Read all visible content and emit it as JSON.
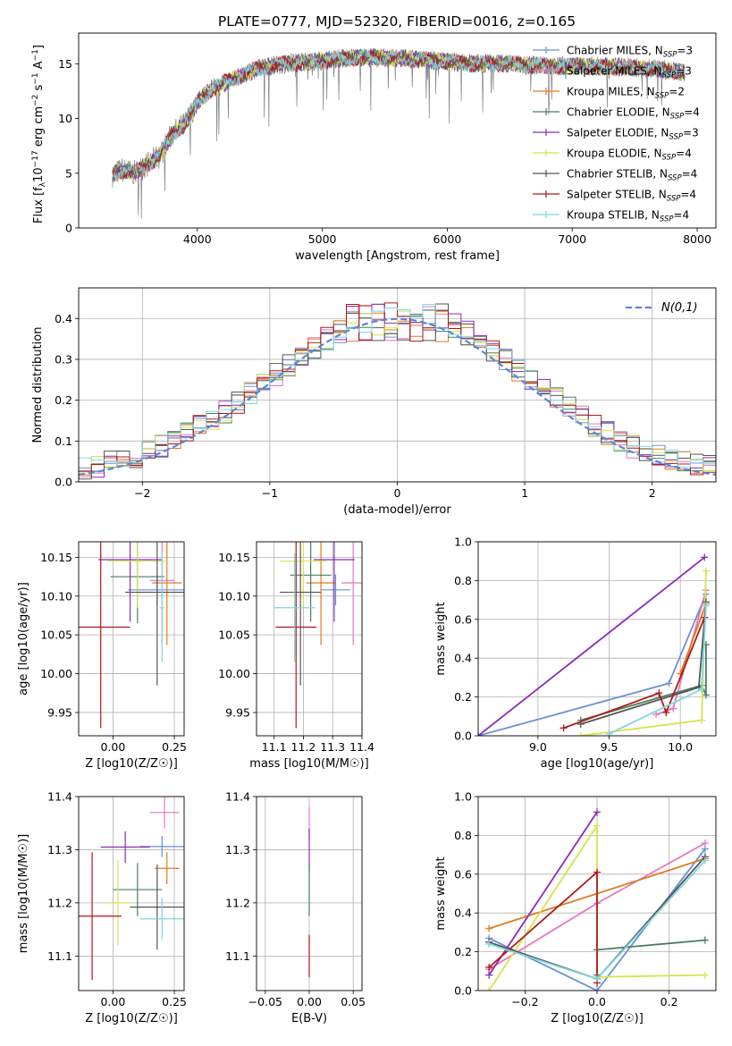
{
  "figure": {
    "title": "PLATE=0777, MJD=52320, FIBERID=0016, z=0.165"
  },
  "models": [
    {
      "name": "Chabrier MILES",
      "nssp": 3,
      "color": "#6b8fd6"
    },
    {
      "name": "Salpeter MILES",
      "nssp": 3,
      "color": "#e377c2"
    },
    {
      "name": "Kroupa MILES",
      "nssp": 2,
      "color": "#e07b20"
    },
    {
      "name": "Chabrier ELODIE",
      "nssp": 4,
      "color": "#4a7d5f"
    },
    {
      "name": "Salpeter ELODIE",
      "nssp": 3,
      "color": "#8a2cb8"
    },
    {
      "name": "Kroupa ELODIE",
      "nssp": 4,
      "color": "#d7e34a"
    },
    {
      "name": "Chabrier STELIB",
      "nssp": 4,
      "color": "#555555"
    },
    {
      "name": "Salpeter STELIB",
      "nssp": 4,
      "color": "#b01818"
    },
    {
      "name": "Kroupa STELIB",
      "nssp": 4,
      "color": "#7fd6e0"
    }
  ],
  "chart_data": [
    {
      "id": "spectrum",
      "type": "line",
      "xlabel": "wavelength [Angstrom, rest frame]",
      "ylabel": "Flux [f_λ 10^-17 erg cm^-2 s^-1 A^-1]",
      "xlim": [
        3050,
        8150
      ],
      "ylim": [
        0,
        17.8
      ],
      "xticks": [
        4000,
        5000,
        6000,
        7000,
        8000
      ],
      "yticks": [
        0,
        5,
        10,
        15
      ],
      "grid": false,
      "legend": "upper right",
      "continuum": {
        "x": [
          3320,
          3400,
          3500,
          3600,
          3700,
          3800,
          3900,
          4000,
          4100,
          4300,
          4500,
          4700,
          5000,
          5300,
          5600,
          5900,
          6200,
          6500,
          6800,
          7100,
          7400,
          7700,
          7900
        ],
        "y": [
          4.9,
          5.3,
          5.0,
          5.8,
          6.6,
          8.6,
          9.5,
          11.5,
          12.6,
          13.7,
          14.6,
          15.0,
          15.3,
          15.6,
          15.5,
          15.3,
          15.0,
          15.0,
          14.8,
          14.8,
          14.7,
          14.5,
          14.2
        ]
      },
      "data_color": "#808080"
    },
    {
      "id": "residuals",
      "type": "line",
      "xlabel": "(data-model)/error",
      "ylabel": "Normed distribution",
      "xlim": [
        -2.5,
        2.5
      ],
      "ylim": [
        0,
        0.475
      ],
      "xticks": [
        -2,
        -1,
        0,
        1,
        2
      ],
      "yticks": [
        0.0,
        0.1,
        0.2,
        0.3,
        0.4
      ],
      "grid": true,
      "legend": "upper right",
      "reference": {
        "label": "N(0,1)",
        "color": "#5b86d8"
      }
    },
    {
      "id": "age-vs-z",
      "type": "scatter",
      "xlabel": "Z [log10(Z/Z☉)]",
      "ylabel": "age [log10(age/yr)]",
      "xlim": [
        -0.14,
        0.29
      ],
      "ylim": [
        9.92,
        10.17
      ],
      "xticks": [
        0.0,
        0.25
      ],
      "yticks": [
        9.95,
        10.0,
        10.05,
        10.1,
        10.15
      ],
      "grid": true,
      "points": [
        {
          "model": 0,
          "x": 0.18,
          "xerr": 0.12,
          "y": 10.108,
          "yerr": 0.02
        },
        {
          "model": 1,
          "x": 0.2,
          "xerr": 0.05,
          "y": 10.12,
          "yerr": 0.08
        },
        {
          "model": 2,
          "x": 0.22,
          "xerr": 0.06,
          "y": 10.117,
          "yerr": 0.08
        },
        {
          "model": 3,
          "x": 0.1,
          "xerr": 0.11,
          "y": 10.125,
          "yerr": 0.06
        },
        {
          "model": 4,
          "x": 0.07,
          "xerr": 0.13,
          "y": 10.147,
          "yerr": 0.08
        },
        {
          "model": 5,
          "x": 0.1,
          "xerr": 0.12,
          "y": 10.145,
          "yerr": 0.06
        },
        {
          "model": 6,
          "x": 0.18,
          "xerr": 0.13,
          "y": 10.105,
          "yerr": 0.12
        },
        {
          "model": 7,
          "x": -0.05,
          "xerr": 0.12,
          "y": 10.06,
          "yerr": 0.13
        },
        {
          "model": 8,
          "x": 0.2,
          "xerr": 0.01,
          "y": 10.085,
          "yerr": 0.07
        }
      ]
    },
    {
      "id": "age-vs-mass",
      "type": "scatter",
      "xlabel": "mass [log10(M/M☉)]",
      "ylabel": "",
      "xlim": [
        11.04,
        11.4
      ],
      "ylim": [
        9.92,
        10.17
      ],
      "xticks": [
        11.1,
        11.2,
        11.3,
        11.4
      ],
      "xticklabels": [
        "11.1",
        "11.2",
        "11.3",
        "11.4"
      ],
      "yticks": [
        9.95,
        10.0,
        10.05,
        10.1,
        10.15
      ],
      "grid": true,
      "points": [
        {
          "model": 0,
          "x": 11.31,
          "xerr": 0.05,
          "y": 10.108,
          "yerr": 0.02
        },
        {
          "model": 1,
          "x": 11.37,
          "xerr": 0.04,
          "y": 10.117,
          "yerr": 0.08
        },
        {
          "model": 2,
          "x": 11.26,
          "xerr": 0.05,
          "y": 10.117,
          "yerr": 0.08
        },
        {
          "model": 3,
          "x": 11.225,
          "xerr": 0.07,
          "y": 10.127,
          "yerr": 0.06
        },
        {
          "model": 4,
          "x": 11.305,
          "xerr": 0.07,
          "y": 10.147,
          "yerr": 0.08
        },
        {
          "model": 5,
          "x": 11.2,
          "xerr": 0.08,
          "y": 10.145,
          "yerr": 0.06
        },
        {
          "model": 6,
          "x": 11.19,
          "xerr": 0.07,
          "y": 10.105,
          "yerr": 0.12
        },
        {
          "model": 7,
          "x": 11.175,
          "xerr": 0.07,
          "y": 10.06,
          "yerr": 0.13
        },
        {
          "model": 8,
          "x": 11.17,
          "xerr": 0.07,
          "y": 10.085,
          "yerr": 0.07
        }
      ]
    },
    {
      "id": "weight-vs-age",
      "type": "line",
      "xlabel": "age [log10(age/yr)]",
      "ylabel": "mass weight",
      "xlim": [
        8.58,
        10.25
      ],
      "ylim": [
        0,
        1.0
      ],
      "xticks": [
        9.0,
        9.5,
        10.0
      ],
      "yticks": [
        0.0,
        0.2,
        0.4,
        0.6,
        0.8,
        1.0
      ],
      "grid": true,
      "series": [
        {
          "model": 0,
          "x": [
            8.58,
            9.92,
            10.18
          ],
          "y": [
            0.0,
            0.27,
            0.73
          ]
        },
        {
          "model": 1,
          "x": [
            9.83,
            9.95,
            10.18
          ],
          "y": [
            0.11,
            0.14,
            0.75
          ]
        },
        {
          "model": 2,
          "x": [
            10.0,
            10.18
          ],
          "y": [
            0.32,
            0.68
          ]
        },
        {
          "model": 3,
          "x": [
            9.3,
            10.15,
            10.18,
            10.18
          ],
          "y": [
            0.08,
            0.26,
            0.21,
            0.47
          ]
        },
        {
          "model": 4,
          "x": [
            8.58,
            10.17
          ],
          "y": [
            0.0,
            0.92
          ]
        },
        {
          "model": 5,
          "x": [
            9.3,
            10.15,
            10.18
          ],
          "y": [
            0.0,
            0.08,
            0.85
          ]
        },
        {
          "model": 6,
          "x": [
            9.3,
            10.13,
            10.18
          ],
          "y": [
            0.06,
            0.25,
            0.69
          ]
        },
        {
          "model": 7,
          "x": [
            9.18,
            9.85,
            9.9,
            10.17
          ],
          "y": [
            0.04,
            0.22,
            0.12,
            0.61
          ]
        },
        {
          "model": 8,
          "x": [
            9.5,
            10.15,
            10.18
          ],
          "y": [
            0.01,
            0.24,
            0.67
          ]
        }
      ]
    },
    {
      "id": "mass-vs-z",
      "type": "scatter",
      "xlabel": "Z [log10(Z/Z☉)]",
      "ylabel": "mass [log10(M/M☉)]",
      "xlim": [
        -0.14,
        0.29
      ],
      "ylim": [
        11.035,
        11.4
      ],
      "xticks": [
        0.0,
        0.25
      ],
      "yticks": [
        11.1,
        11.2,
        11.3,
        11.4
      ],
      "grid": true,
      "points": [
        {
          "model": 0,
          "x": 0.2,
          "xerr": 0.09,
          "y": 11.306,
          "yerr": 0.02
        },
        {
          "model": 1,
          "x": 0.21,
          "xerr": 0.06,
          "y": 11.37,
          "yerr": 0.03
        },
        {
          "model": 2,
          "x": 0.22,
          "xerr": 0.05,
          "y": 11.265,
          "yerr": 0.03
        },
        {
          "model": 3,
          "x": 0.1,
          "xerr": 0.1,
          "y": 11.225,
          "yerr": 0.05
        },
        {
          "model": 4,
          "x": 0.05,
          "xerr": 0.1,
          "y": 11.305,
          "yerr": 0.03
        },
        {
          "model": 5,
          "x": 0.02,
          "xerr": 0.05,
          "y": 11.2,
          "yerr": 0.08
        },
        {
          "model": 6,
          "x": 0.18,
          "xerr": 0.11,
          "y": 11.192,
          "yerr": 0.08
        },
        {
          "model": 7,
          "x": -0.085,
          "xerr": 0.12,
          "y": 11.175,
          "yerr": 0.12
        },
        {
          "model": 8,
          "x": 0.2,
          "xerr": 0.09,
          "y": 11.17,
          "yerr": 0.04
        }
      ]
    },
    {
      "id": "mass-vs-ebv",
      "type": "scatter",
      "xlabel": "E(B-V)",
      "ylabel": "",
      "xlim": [
        -0.06,
        0.06
      ],
      "ylim": [
        11.035,
        11.4
      ],
      "xticks": [
        -0.05,
        0.0,
        0.05
      ],
      "yticks": [
        11.1,
        11.2,
        11.3,
        11.4
      ],
      "grid": true,
      "points": [
        {
          "model": 1,
          "x": 0.0,
          "xerr": 0,
          "y": 11.35,
          "yerr": 0.03
        },
        {
          "model": 4,
          "x": 0.0,
          "xerr": 0,
          "y": 11.3,
          "yerr": 0.04
        },
        {
          "model": 3,
          "x": 0.0,
          "xerr": 0,
          "y": 11.225,
          "yerr": 0.05
        },
        {
          "model": 7,
          "x": 0.0,
          "xerr": 0,
          "y": 11.1,
          "yerr": 0.04
        }
      ]
    },
    {
      "id": "weight-vs-z",
      "type": "line",
      "xlabel": "Z [log10(Z/Z☉)]",
      "ylabel": "mass weight",
      "xlim": [
        -0.33,
        0.33
      ],
      "ylim": [
        0,
        1.0
      ],
      "xticks": [
        -0.2,
        0.0,
        0.2
      ],
      "yticks": [
        0.0,
        0.2,
        0.4,
        0.6,
        0.8,
        1.0
      ],
      "grid": true,
      "series": [
        {
          "model": 0,
          "x": [
            -0.3,
            0.0,
            0.3
          ],
          "y": [
            0.27,
            0.0,
            0.73
          ]
        },
        {
          "model": 1,
          "x": [
            -0.3,
            0.0,
            0.3
          ],
          "y": [
            0.11,
            0.45,
            0.76
          ]
        },
        {
          "model": 2,
          "x": [
            -0.3,
            0.3
          ],
          "y": [
            0.32,
            0.68
          ]
        },
        {
          "model": 3,
          "x": [
            0.0,
            0.0,
            0.3
          ],
          "y": [
            0.08,
            0.21,
            0.26
          ]
        },
        {
          "model": 4,
          "x": [
            -0.3,
            0.0
          ],
          "y": [
            0.08,
            0.92
          ]
        },
        {
          "model": 5,
          "x": [
            -0.3,
            0.0,
            0.0,
            0.3
          ],
          "y": [
            0.0,
            0.85,
            0.07,
            0.08
          ]
        },
        {
          "model": 6,
          "x": [
            -0.3,
            0.0,
            0.3
          ],
          "y": [
            0.25,
            0.06,
            0.69
          ]
        },
        {
          "model": 7,
          "x": [
            -0.3,
            0.0,
            0.0
          ],
          "y": [
            0.12,
            0.61,
            0.04
          ]
        },
        {
          "model": 8,
          "x": [
            -0.3,
            0.0,
            0.3
          ],
          "y": [
            0.24,
            0.06,
            0.67
          ]
        }
      ]
    }
  ]
}
